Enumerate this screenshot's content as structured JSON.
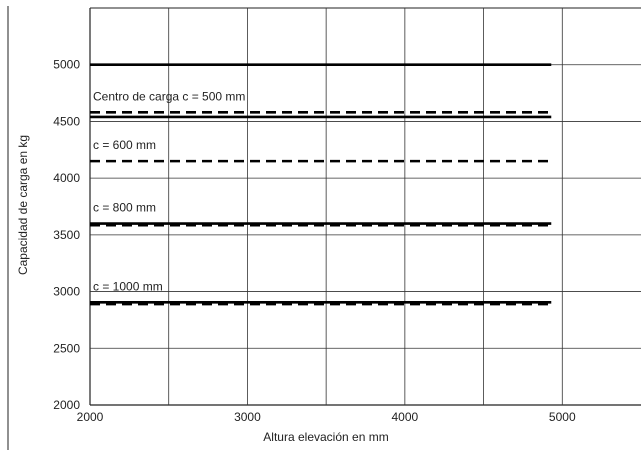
{
  "chart_data": {
    "type": "line",
    "title": "",
    "xlabel": "Altura elevación en mm",
    "ylabel": "Capacidad de carga en kg",
    "xlim": [
      2000,
      5500
    ],
    "ylim": [
      2000,
      5500
    ],
    "x_ticks": [
      2000,
      3000,
      4000,
      5000
    ],
    "x_tick_labels": [
      "2000",
      "3000",
      "4000",
      "5000"
    ],
    "x_gridlines": [
      2000,
      2500,
      3000,
      3500,
      4000,
      4500,
      5000
    ],
    "y_ticks": [
      2000,
      2500,
      3000,
      3500,
      4000,
      4500,
      5000
    ],
    "y_tick_labels": [
      "2000",
      "2500",
      "3000",
      "3500",
      "4000",
      "4500",
      "5000"
    ],
    "grid": true,
    "series": [
      {
        "style": "solid",
        "x": [
          2000,
          4930
        ],
        "values": [
          5000,
          5000
        ]
      },
      {
        "name": "Centro de carga  c = 500 mm",
        "style": "dashed",
        "x": [
          2000,
          4930
        ],
        "values": [
          4580,
          4580
        ]
      },
      {
        "style": "solid",
        "x": [
          2000,
          4930
        ],
        "values": [
          4540,
          4540
        ]
      },
      {
        "name": "c = 600 mm",
        "style": "dashed",
        "x": [
          2000,
          4930
        ],
        "values": [
          4150,
          4150
        ]
      },
      {
        "name": "c = 800 mm",
        "style": "solid",
        "x": [
          2000,
          4930
        ],
        "values": [
          3600,
          3600
        ]
      },
      {
        "style": "dashed",
        "x": [
          2000,
          4930
        ],
        "values": [
          3585,
          3585
        ]
      },
      {
        "name": "c = 1000 mm",
        "style": "solid",
        "x": [
          2000,
          4930
        ],
        "values": [
          2905,
          2905
        ]
      },
      {
        "style": "dashed",
        "x": [
          2000,
          4930
        ],
        "values": [
          2890,
          2890
        ]
      }
    ]
  }
}
